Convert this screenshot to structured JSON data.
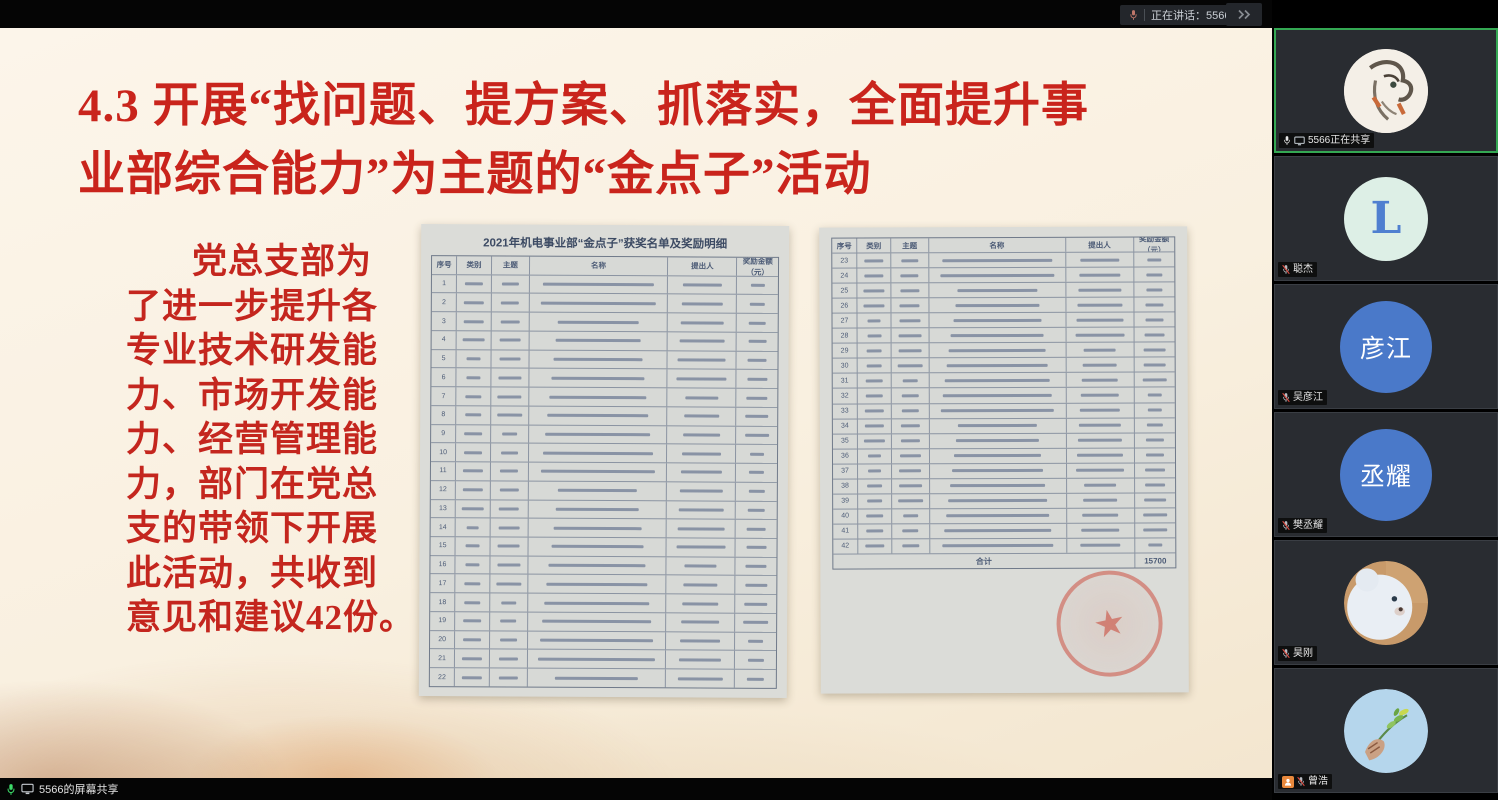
{
  "top_bar": {
    "speaking_label": "正在讲话：5566..."
  },
  "screen_share": {
    "bottom_label": "5566的屏幕共享"
  },
  "slide": {
    "title_line1": "4.3 开展“找问题、提方案、抓落实，全面提升事",
    "title_line2": "业部综合能力”为主题的“金点子”活动",
    "body_lines": [
      "党总支部为",
      "了进一步提升各",
      "专业技术研发能",
      "力、市场开发能",
      "力、经营管理能",
      "力，部门在党总",
      "支的带领下开展",
      "此活动，共收到",
      "意见和建议42份。"
    ],
    "left_table": {
      "title": "2021年机电事业部“金点子”获奖名单及奖励明细",
      "headers": [
        "序号",
        "类别",
        "主题",
        "名称",
        "提出人",
        "奖励金额（元）"
      ],
      "row_count": 22,
      "start_number": 1
    },
    "right_table": {
      "headers": [
        "序号",
        "类别",
        "主题",
        "名称",
        "提出人",
        "奖励金额（元）"
      ],
      "row_count": 20,
      "start_number": 23,
      "total_label": "合计",
      "total_value": "15700"
    }
  },
  "participants": [
    {
      "label": "5566正在共享",
      "avatar": "anime-portrait",
      "active_speaker": true,
      "sharing": true,
      "muted": false
    },
    {
      "label": "聪杰",
      "avatar": "letter-L",
      "avatar_letter": "L",
      "muted": true
    },
    {
      "label": "吴彦江",
      "avatar": "initials",
      "avatar_text": "彦江",
      "muted": true
    },
    {
      "label": "樊丞耀",
      "avatar": "initials",
      "avatar_text": "丞耀",
      "muted": true
    },
    {
      "label": "昊刚",
      "avatar": "teddy-bear",
      "muted": true
    },
    {
      "label": "曾浩",
      "avatar": "plant-hand",
      "muted": true,
      "host": true
    }
  ],
  "colors": {
    "active_speaker_border": "#34a853",
    "slide_red": "#c9241c",
    "avatar_blue": "#4a79c9",
    "share_mic_green": "#3ddc6a",
    "host_badge_orange": "#e8883c"
  }
}
